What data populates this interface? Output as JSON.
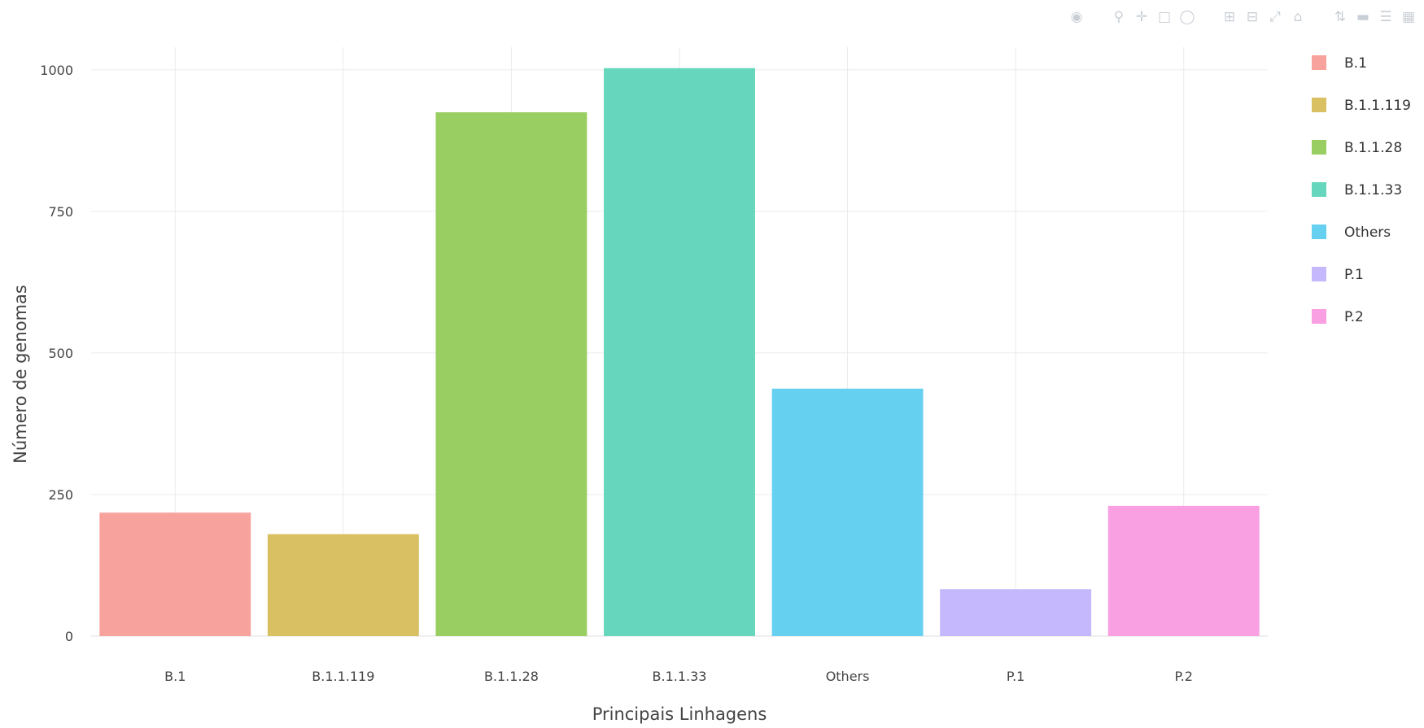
{
  "chart_data": {
    "type": "bar",
    "categories": [
      "B.1",
      "B.1.1.119",
      "B.1.1.28",
      "B.1.1.33",
      "Others",
      "P.1",
      "P.2"
    ],
    "series": [
      {
        "name": "B.1",
        "category": "B.1",
        "value": 218,
        "color": "#F8A29D"
      },
      {
        "name": "B.1.1.119",
        "category": "B.1.1.119",
        "value": 180,
        "color": "#D8C063"
      },
      {
        "name": "B.1.1.28",
        "category": "B.1.1.28",
        "value": 925,
        "color": "#99CE62"
      },
      {
        "name": "B.1.1.33",
        "category": "B.1.1.33",
        "value": 1003,
        "color": "#66D7BC"
      },
      {
        "name": "Others",
        "category": "Others",
        "value": 437,
        "color": "#66D0F0"
      },
      {
        "name": "P.1",
        "category": "P.1",
        "value": 83,
        "color": "#C6B8FC"
      },
      {
        "name": "P.2",
        "category": "P.2",
        "value": 230,
        "color": "#F9A0E2"
      }
    ],
    "yticks": [
      0,
      250,
      500,
      750,
      1000
    ],
    "ylim": [
      0,
      1040
    ],
    "xlabel": "Principais Linhagens",
    "ylabel": "Número de genomas",
    "grid": true,
    "legend": "right"
  },
  "modebar": {
    "icons": [
      "camera-icon",
      "zoom-icon",
      "pan-icon",
      "box-select-icon",
      "lasso-select-icon",
      "zoom-in-icon",
      "zoom-out-icon",
      "autoscale-icon",
      "reset-axes-icon",
      "spike-lines-icon",
      "hover-closest-icon",
      "hover-compare-icon",
      "plotly-logo-icon"
    ]
  }
}
